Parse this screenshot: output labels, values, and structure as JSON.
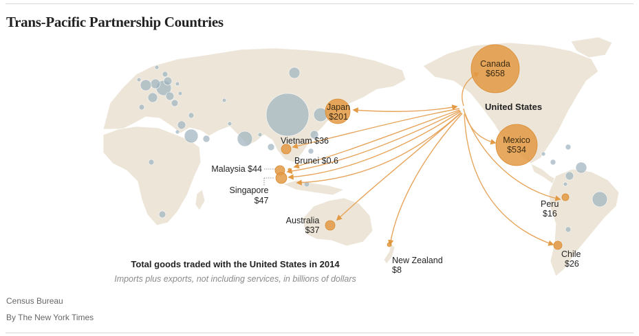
{
  "title": "Trans-Pacific Partnership Countries",
  "hub_label": "United States",
  "caption": {
    "title": "Total goods traded with the United States in 2014",
    "subtitle": "Imports plus exports, not including services, in billions of dollars"
  },
  "partners": [
    {
      "id": "canada",
      "name": "Canada",
      "value_label": "$658",
      "value": 658
    },
    {
      "id": "mexico",
      "name": "Mexico",
      "value_label": "$534",
      "value": 534
    },
    {
      "id": "japan",
      "name": "Japan",
      "value_label": "$201",
      "value": 201
    },
    {
      "id": "vietnam",
      "name": "Vietnam",
      "value_label": "$36",
      "value": 36
    },
    {
      "id": "brunei",
      "name": "Brunei",
      "value_label": "$0.6",
      "value": 0.6
    },
    {
      "id": "malaysia",
      "name": "Malaysia",
      "value_label": "$44",
      "value": 44
    },
    {
      "id": "singapore",
      "name": "Singapore",
      "value_label": "$47",
      "value": 47
    },
    {
      "id": "australia",
      "name": "Australia",
      "value_label": "$37",
      "value": 37
    },
    {
      "id": "new_zealand",
      "name": "New Zealand",
      "value_label": "$8",
      "value": 8
    },
    {
      "id": "peru",
      "name": "Peru",
      "value_label": "$16",
      "value": 16
    },
    {
      "id": "chile",
      "name": "Chile",
      "value_label": "$26",
      "value": 26
    }
  ],
  "colors": {
    "land": "#ece5d8",
    "tpp_bubble": "#e39a44",
    "other_bubble": "#9fb4bf",
    "arrow": "#e7a55c"
  },
  "source": "Census Bureau",
  "byline": "By The New York Times"
}
